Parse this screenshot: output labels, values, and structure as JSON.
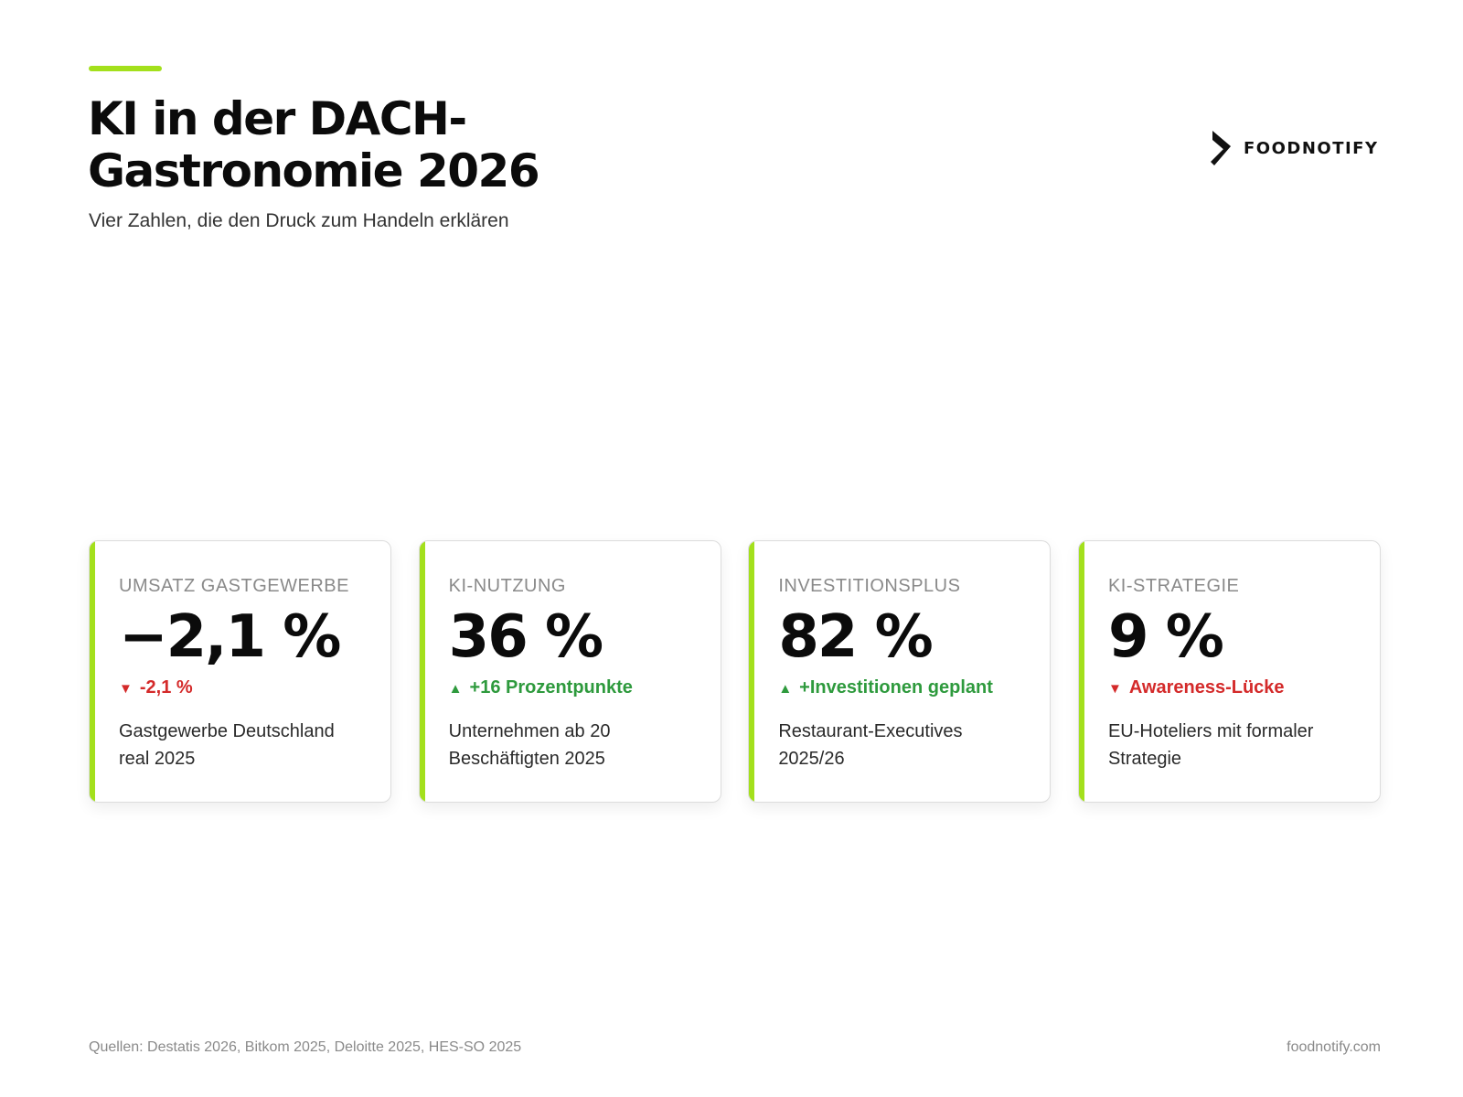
{
  "header": {
    "title_line1": "KI in der DACH-",
    "title_line2": "Gastronomie 2026",
    "subtitle": "Vier Zahlen, die den Druck zum Handeln erklären",
    "accent_color": "#a3e01c"
  },
  "logo": {
    "icon": "foodnotify-logo-icon",
    "text": "FOODNOTIFY"
  },
  "cards": [
    {
      "label": "UMSATZ GASTGEWERBE",
      "value": "−2,1 %",
      "trend_direction": "down",
      "trend_arrow": "▼",
      "trend_text": "-2,1 %",
      "desc_line1": "Gastgewerbe Deutschland",
      "desc_line2": "real 2025"
    },
    {
      "label": "KI-NUTZUNG",
      "value": "36 %",
      "trend_direction": "up",
      "trend_arrow": "▲",
      "trend_text": "+16 Prozentpunkte",
      "desc_line1": "Unternehmen ab 20",
      "desc_line2": "Beschäftigten 2025"
    },
    {
      "label": "INVESTITIONSPLUS",
      "value": "82 %",
      "trend_direction": "up",
      "trend_arrow": "▲",
      "trend_text": "+Investitionen geplant",
      "desc_line1": "Restaurant-Executives",
      "desc_line2": "2025/26"
    },
    {
      "label": "KI-STRATEGIE",
      "value": "9 %",
      "trend_direction": "down",
      "trend_arrow": "▼",
      "trend_text": "Awareness-Lücke",
      "desc_line1": "EU-Hoteliers mit formaler",
      "desc_line2": "Strategie"
    }
  ],
  "colors": {
    "trend_up": "#2e9a3d",
    "trend_down": "#d42a2a"
  },
  "footer": {
    "sources": "Quellen: Destatis 2026, Bitkom 2025, Deloitte 2025, HES-SO 2025",
    "url": "foodnotify.com"
  }
}
